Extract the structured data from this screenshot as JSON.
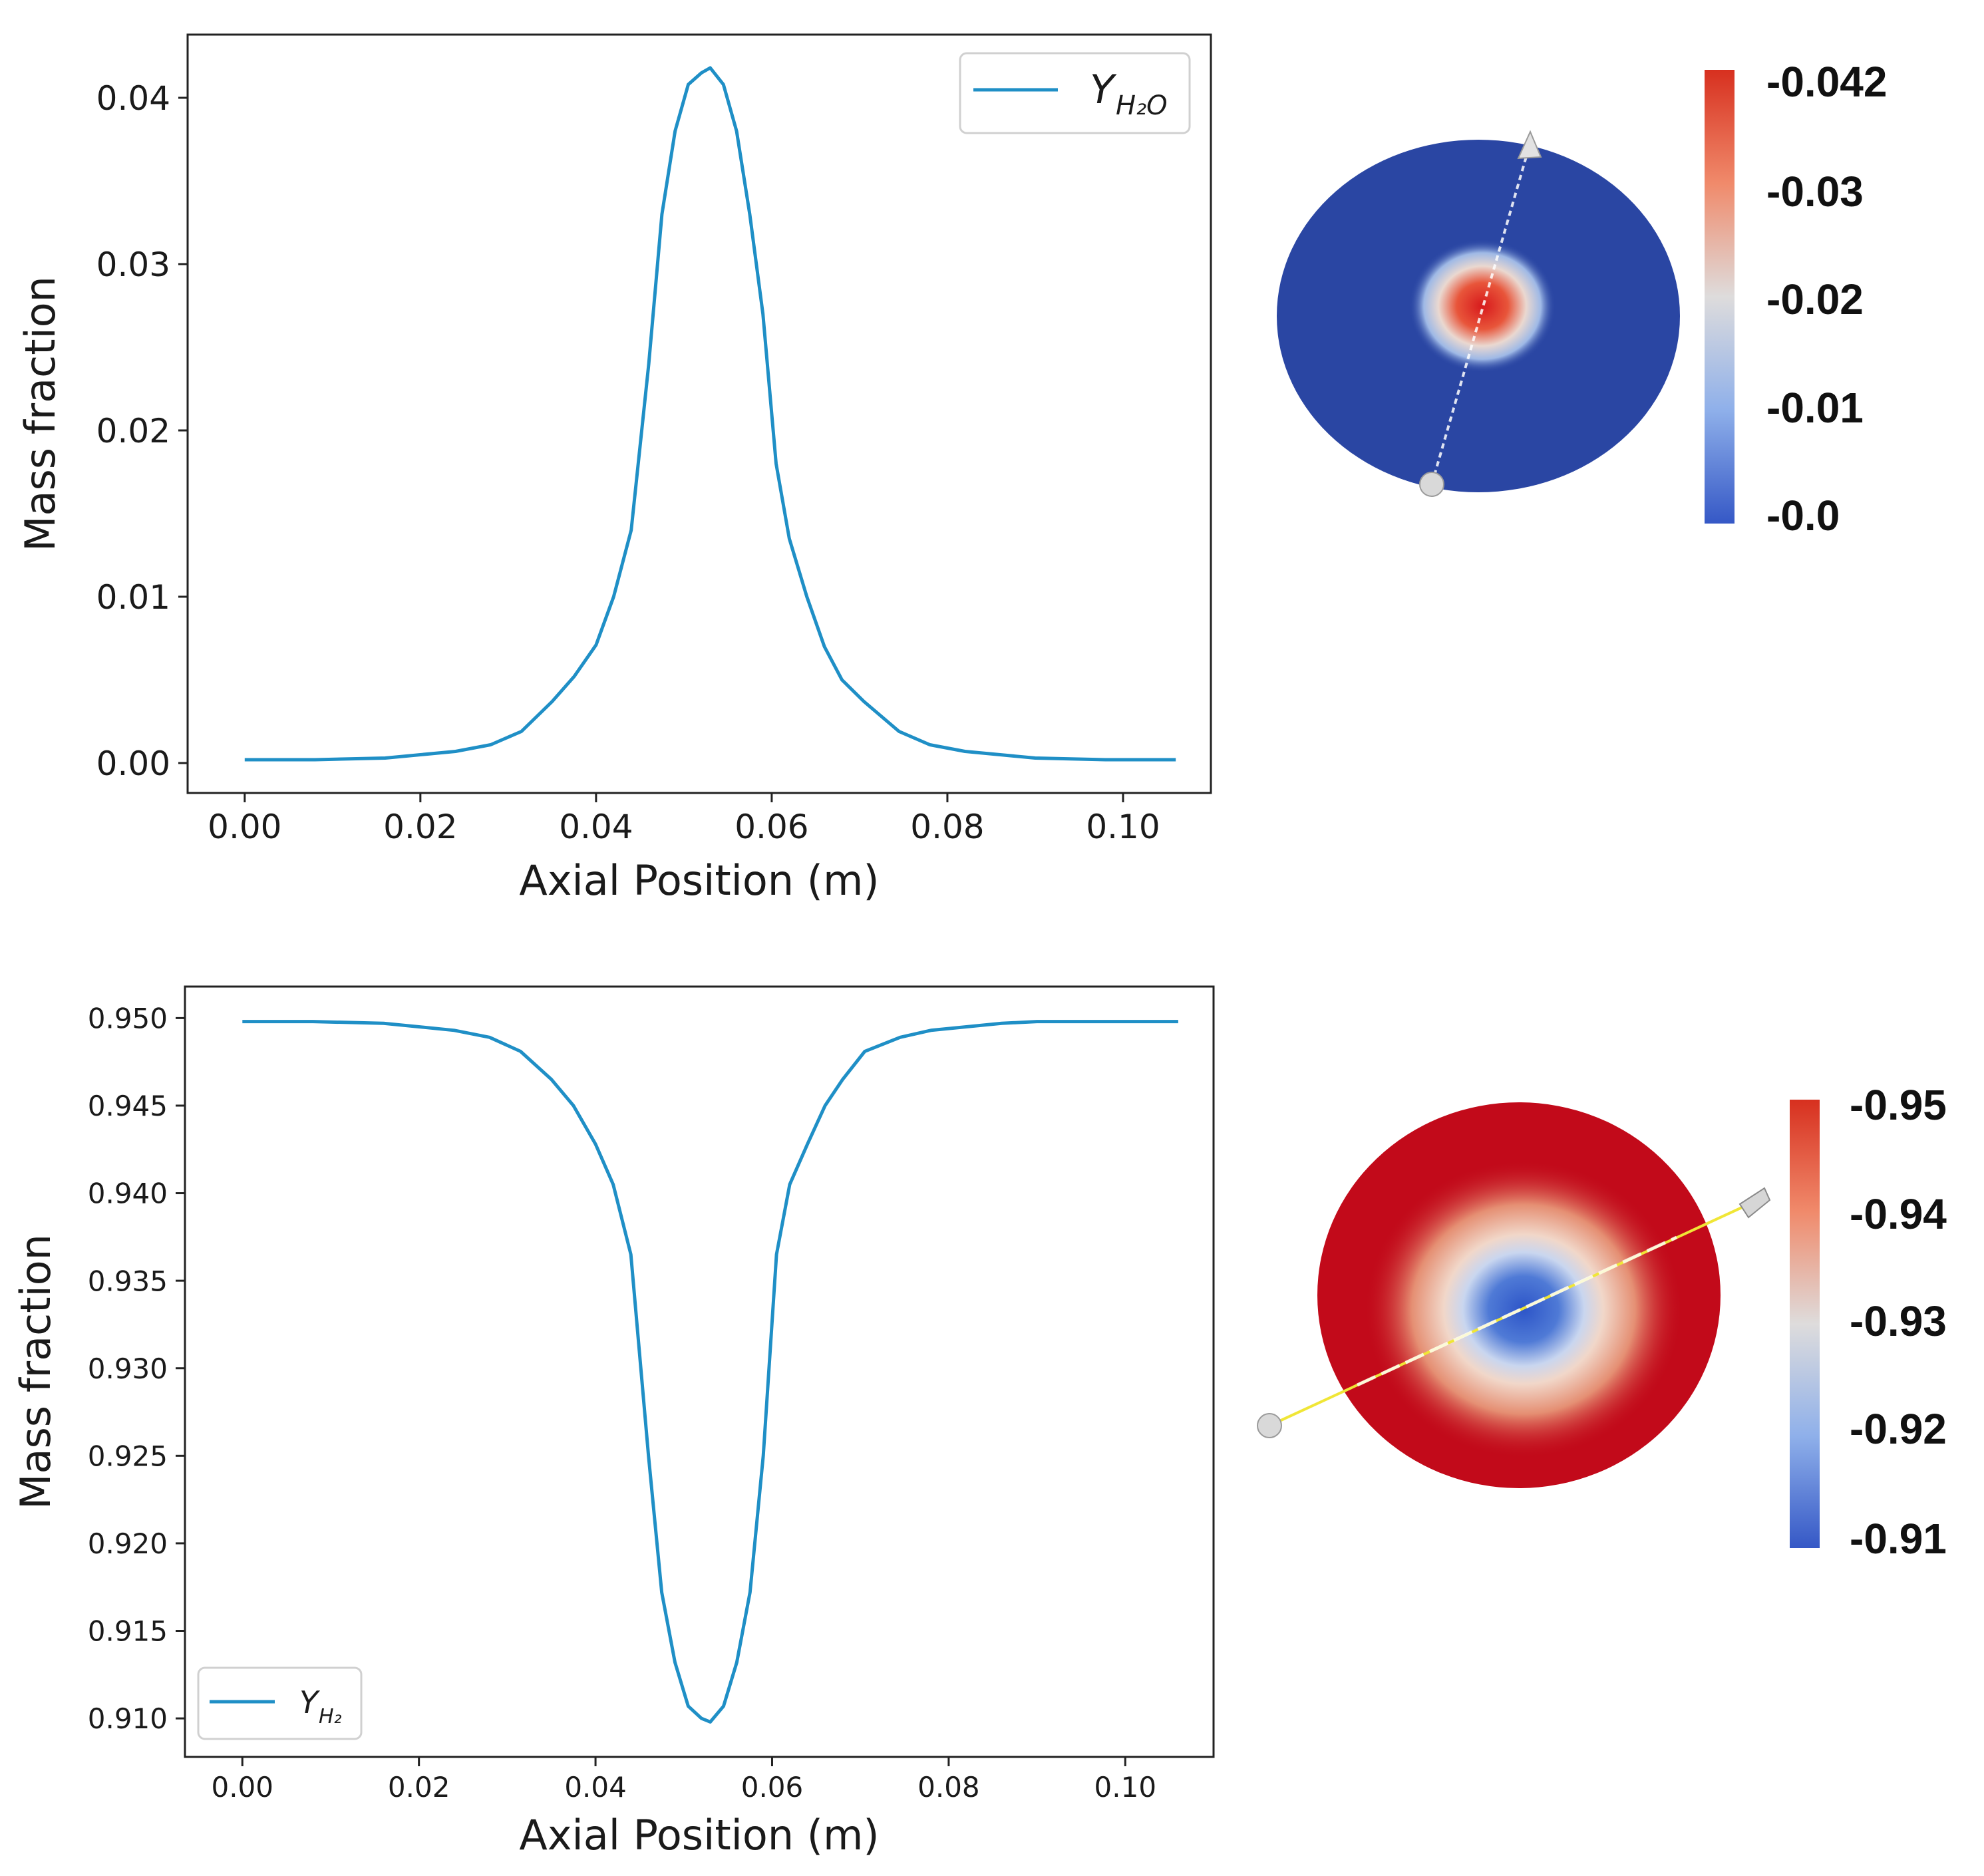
{
  "colors": {
    "line": "#1f8fc6",
    "axes": "#222222",
    "disk_blue": "#2a46a3",
    "disk_red": "#c20a1a",
    "cbar_red": "#d7301f",
    "cbar_mid": "#dedcdc",
    "cbar_blue": "#3558c6"
  },
  "chart_data": [
    {
      "type": "line",
      "xlabel": "Axial Position (m)",
      "ylabel": "Mass fraction",
      "xlim": [
        -0.0065,
        0.11
      ],
      "ylim": [
        -0.0018,
        0.0438
      ],
      "xticks": [
        0.0,
        0.02,
        0.04,
        0.06,
        0.08,
        0.1
      ],
      "xtick_labels": [
        "0.00",
        "0.02",
        "0.04",
        "0.06",
        "0.08",
        "0.10"
      ],
      "yticks": [
        0.0,
        0.01,
        0.02,
        0.03,
        0.04
      ],
      "ytick_labels": [
        "0.00",
        "0.01",
        "0.02",
        "0.03",
        "0.04"
      ],
      "legend_position": "top-right",
      "series": [
        {
          "name": "Y",
          "subscript": "H₂O",
          "x": [
            0.0,
            0.008,
            0.016,
            0.02,
            0.024,
            0.028,
            0.0315,
            0.035,
            0.0375,
            0.04,
            0.042,
            0.044,
            0.046,
            0.0475,
            0.049,
            0.0505,
            0.052,
            0.053,
            0.0545,
            0.056,
            0.0575,
            0.059,
            0.0605,
            0.062,
            0.064,
            0.066,
            0.068,
            0.0705,
            0.0745,
            0.078,
            0.082,
            0.086,
            0.09,
            0.098,
            0.106
          ],
          "values": [
            0.0002,
            0.0002,
            0.0003,
            0.0005,
            0.0007,
            0.0011,
            0.0019,
            0.0037,
            0.0052,
            0.0071,
            0.01,
            0.014,
            0.024,
            0.033,
            0.038,
            0.0408,
            0.0415,
            0.0418,
            0.0408,
            0.038,
            0.033,
            0.027,
            0.018,
            0.0135,
            0.01,
            0.007,
            0.005,
            0.0037,
            0.0019,
            0.0011,
            0.0007,
            0.0005,
            0.0003,
            0.0002,
            0.0002
          ]
        }
      ]
    },
    {
      "type": "line",
      "xlabel": "Axial Position (m)",
      "ylabel": "Mass fraction",
      "xlim": [
        -0.0065,
        0.11
      ],
      "ylim": [
        0.9078,
        0.9518
      ],
      "xticks": [
        0.0,
        0.02,
        0.04,
        0.06,
        0.08,
        0.1
      ],
      "xtick_labels": [
        "0.00",
        "0.02",
        "0.04",
        "0.06",
        "0.08",
        "0.10"
      ],
      "yticks": [
        0.91,
        0.915,
        0.92,
        0.925,
        0.93,
        0.935,
        0.94,
        0.945,
        0.95
      ],
      "ytick_labels": [
        "0.910",
        "0.915",
        "0.920",
        "0.925",
        "0.930",
        "0.935",
        "0.940",
        "0.945",
        "0.950"
      ],
      "legend_position": "bottom-left",
      "series": [
        {
          "name": "Y",
          "subscript": "H₂",
          "x": [
            0.0,
            0.008,
            0.016,
            0.02,
            0.024,
            0.028,
            0.0315,
            0.035,
            0.0375,
            0.04,
            0.042,
            0.044,
            0.046,
            0.0475,
            0.049,
            0.0505,
            0.052,
            0.053,
            0.0545,
            0.056,
            0.0575,
            0.059,
            0.0605,
            0.062,
            0.064,
            0.066,
            0.068,
            0.0705,
            0.0745,
            0.078,
            0.082,
            0.086,
            0.09,
            0.098,
            0.106
          ],
          "values": [
            0.9498,
            0.9498,
            0.9497,
            0.9495,
            0.9493,
            0.9489,
            0.9481,
            0.9465,
            0.945,
            0.9428,
            0.9405,
            0.9365,
            0.925,
            0.9172,
            0.9132,
            0.9107,
            0.91,
            0.9098,
            0.9107,
            0.9132,
            0.9172,
            0.925,
            0.9365,
            0.9405,
            0.9428,
            0.945,
            0.9465,
            0.9481,
            0.9489,
            0.9493,
            0.9495,
            0.9497,
            0.9498,
            0.9498,
            0.9498
          ]
        }
      ]
    }
  ],
  "colorbars": [
    {
      "tick_labels": [
        "-0.042",
        "-0.03",
        "-0.02",
        "-0.01",
        "-0.0"
      ]
    },
    {
      "tick_labels": [
        "-0.95",
        "-0.94",
        "-0.93",
        "-0.92",
        "-0.91"
      ]
    }
  ]
}
